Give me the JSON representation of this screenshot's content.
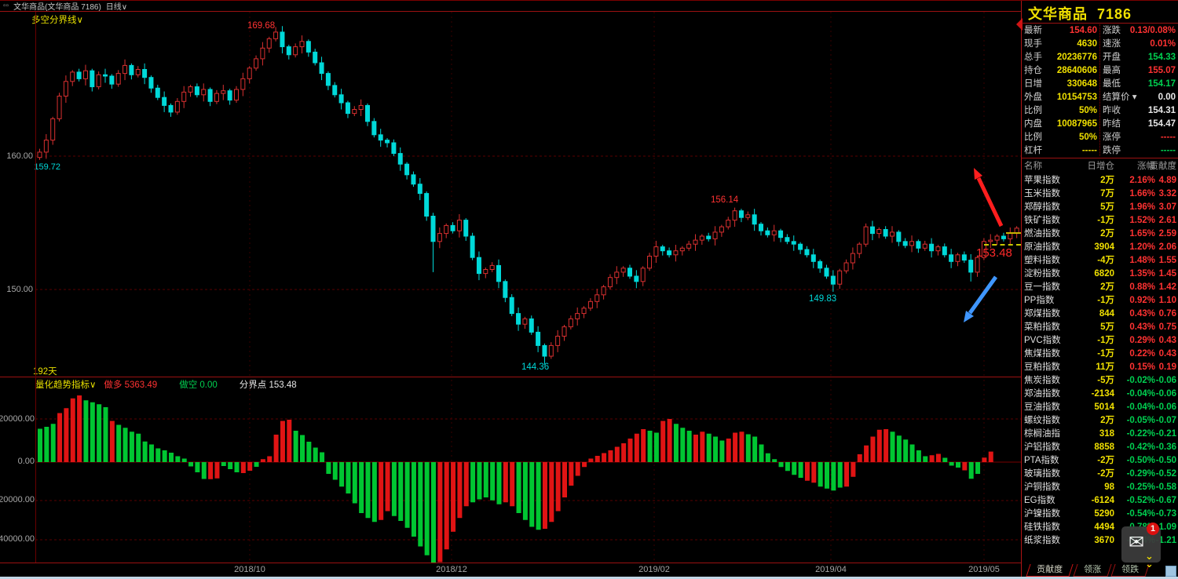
{
  "header": {
    "window_icon": "▫▫",
    "title": "文华商品(文华商品 7186)",
    "period": "日线",
    "dropdown": "∨"
  },
  "chart": {
    "overlay_name": "多空分界线",
    "dropdown": "∨",
    "days_label": "192天",
    "price_axis_labels": [
      "160.00",
      "150.00"
    ],
    "first_low_label": "159.72",
    "peak_label": "169.68",
    "high2_label": "156.14",
    "low_label": "144.36",
    "low2_label": "149.83",
    "divider_price": "153.48"
  },
  "indicator": {
    "name": "量化趋势指标",
    "dropdown": "∨",
    "long_label": "做多",
    "long_value": "5363.49",
    "short_label": "做空",
    "short_value": "0.00",
    "pivot_label": "分界点",
    "pivot_value": "153.48",
    "y_labels": [
      "20000.00",
      "0.00",
      "-20000.00",
      "-40000.00"
    ],
    "x_labels": [
      "2018/10",
      "2018/12",
      "2019/02",
      "2019/04",
      "2019/05"
    ]
  },
  "quote": {
    "name": "文华商品",
    "code": "7186",
    "rows": [
      {
        "l": "最新",
        "v": "154.60",
        "c": "r",
        "l2": "涨跌",
        "v2": "0.13/0.08%",
        "c2": "r"
      },
      {
        "l": "现手",
        "v": "4630",
        "c": "y",
        "l2": "速涨",
        "v2": "0.01%",
        "c2": "r"
      },
      {
        "l": "总手",
        "v": "20236776",
        "c": "y",
        "l2": "开盘",
        "v2": "154.33",
        "c2": "g"
      },
      {
        "l": "持仓",
        "v": "28640606",
        "c": "y",
        "l2": "最高",
        "v2": "155.07",
        "c2": "r"
      },
      {
        "l": "日增",
        "v": "330648",
        "c": "y",
        "l2": "最低",
        "v2": "154.17",
        "c2": "g"
      },
      {
        "l": "外盘",
        "v": "10154753",
        "c": "y",
        "l2": "结算价",
        "v2": "0.00",
        "c2": "w",
        "dd": true
      },
      {
        "l": "比例",
        "v": "50%",
        "c": "y",
        "l2": "昨收",
        "v2": "154.31",
        "c2": "w"
      },
      {
        "l": "内盘",
        "v": "10087965",
        "c": "y",
        "l2": "昨结",
        "v2": "154.47",
        "c2": "w"
      },
      {
        "l": "比例",
        "v": "50%",
        "c": "y",
        "l2": "涨停",
        "v2": "-----",
        "c2": "r"
      },
      {
        "l": "杠杆",
        "v": "-----",
        "c": "y",
        "l2": "跌停",
        "v2": "-----",
        "c2": "g"
      }
    ]
  },
  "table": {
    "headers": [
      "名称",
      "日增仓",
      "涨幅",
      "贡献度"
    ],
    "rows": [
      [
        "苹果指数",
        "2万",
        "2.16%",
        "4.89"
      ],
      [
        "玉米指数",
        "7万",
        "1.66%",
        "3.32"
      ],
      [
        "郑醇指数",
        "5万",
        "1.96%",
        "3.07"
      ],
      [
        "铁矿指数",
        "-1万",
        "1.52%",
        "2.61"
      ],
      [
        "燃油指数",
        "2万",
        "1.65%",
        "2.59"
      ],
      [
        "原油指数",
        "3904",
        "1.20%",
        "2.06"
      ],
      [
        "塑料指数",
        "-4万",
        "1.48%",
        "1.55"
      ],
      [
        "淀粉指数",
        "6820",
        "1.35%",
        "1.45"
      ],
      [
        "豆一指数",
        "2万",
        "0.88%",
        "1.42"
      ],
      [
        "PP指数",
        "-1万",
        "0.92%",
        "1.10"
      ],
      [
        "郑煤指数",
        "844",
        "0.43%",
        "0.76"
      ],
      [
        "菜粕指数",
        "5万",
        "0.43%",
        "0.75"
      ],
      [
        "PVC指数",
        "-1万",
        "0.29%",
        "0.43"
      ],
      [
        "焦煤指数",
        "-1万",
        "0.22%",
        "0.43"
      ],
      [
        "豆粕指数",
        "11万",
        "0.15%",
        "0.19"
      ],
      [
        "焦炭指数",
        "-5万",
        "-0.02%",
        "-0.06"
      ],
      [
        "郑油指数",
        "-2134",
        "-0.04%",
        "-0.06"
      ],
      [
        "豆油指数",
        "5014",
        "-0.04%",
        "-0.06"
      ],
      [
        "螺纹指数",
        "2万",
        "-0.05%",
        "-0.07"
      ],
      [
        "棕榈油指",
        "318",
        "-0.22%",
        "-0.21"
      ],
      [
        "沪铝指数",
        "8858",
        "-0.42%",
        "-0.36"
      ],
      [
        "PTA指数",
        "-2万",
        "-0.50%",
        "-0.50"
      ],
      [
        "玻璃指数",
        "-2万",
        "-0.29%",
        "-0.52"
      ],
      [
        "沪铜指数",
        "98",
        "-0.25%",
        "-0.58"
      ],
      [
        "EG指数",
        "-6124",
        "-0.52%",
        "-0.67"
      ],
      [
        "沪镍指数",
        "5290",
        "-0.54%",
        "-0.73"
      ],
      [
        "硅铁指数",
        "4494",
        "-0.78%",
        "-1.09"
      ],
      [
        "纸浆指数",
        "3670",
        "-0.84%",
        "-1.21"
      ]
    ]
  },
  "tabs": [
    "贡献度",
    "领涨",
    "领跌"
  ],
  "mail": {
    "badge": "1"
  },
  "colors": {
    "up_candle": "#d93030",
    "down_candle": "#00d9d9",
    "hist_red": "#e01414",
    "hist_green": "#00c632",
    "pos_red": "#ff3232",
    "neg_green": "#00d050",
    "value_yellow": "#f0e000",
    "accent_yellow": "#e8d800",
    "white": "#e8e8e8",
    "grid_red": "#5a0000",
    "border_red": "#9b1111"
  },
  "chart_data": {
    "type": "candlestick+histogram",
    "price_panel": {
      "y_axis": [
        160.0,
        150.0
      ],
      "labeled_points": {
        "peak_high": 169.68,
        "first_low": 159.72,
        "swing_high": 156.14,
        "major_low": 144.36,
        "minor_low": 149.83,
        "pivot_line": 153.48,
        "last_close": 154.6
      },
      "open_first": 159.9,
      "closes": [
        160.3,
        161.2,
        162.8,
        164.5,
        165.6,
        166.3,
        165.8,
        166.4,
        165.2,
        166.1,
        166.0,
        165.4,
        166.2,
        166.8,
        166.1,
        166.5,
        165.9,
        165.1,
        164.4,
        163.8,
        163.3,
        164.1,
        164.8,
        165.2,
        164.6,
        165.0,
        164.1,
        164.7,
        164.9,
        164.2,
        165.0,
        165.8,
        166.6,
        167.3,
        168.1,
        168.8,
        169.3,
        168.2,
        167.6,
        168.2,
        168.6,
        167.8,
        167.0,
        166.2,
        165.3,
        164.6,
        164.0,
        163.2,
        163.5,
        163.8,
        162.6,
        161.6,
        161.2,
        161.0,
        160.2,
        159.4,
        158.6,
        157.9,
        157.2,
        155.5,
        153.6,
        154.2,
        154.8,
        154.4,
        155.2,
        154.0,
        152.4,
        151.2,
        151.5,
        151.8,
        150.6,
        149.4,
        148.2,
        147.4,
        147.8,
        146.8,
        145.8,
        145.0,
        145.8,
        146.5,
        147.2,
        147.8,
        148.2,
        148.6,
        149.1,
        149.6,
        150.2,
        150.9,
        151.3,
        151.6,
        151.0,
        150.6,
        151.6,
        152.5,
        153.2,
        152.9,
        152.6,
        152.9,
        153.1,
        153.4,
        153.7,
        154.0,
        153.8,
        154.3,
        154.7,
        155.2,
        155.9,
        155.4,
        155.6,
        154.9,
        154.4,
        154.1,
        154.4,
        153.9,
        153.6,
        153.4,
        153.0,
        152.6,
        152.1,
        151.6,
        151.0,
        150.4,
        151.4,
        152.0,
        152.7,
        153.4,
        154.7,
        154.2,
        154.5,
        154.0,
        154.3,
        153.6,
        153.3,
        153.6,
        153.1,
        153.4,
        152.9,
        153.2,
        152.6,
        152.1,
        152.6,
        152.2,
        151.3,
        152.4,
        153.6,
        153.7,
        154.0,
        153.8,
        154.2,
        154.6
      ],
      "specials": {
        "0": {
          "low": 159.72
        },
        "36": {
          "high": 169.68
        },
        "60": {
          "low": 151.3
        },
        "77": {
          "low": 144.36
        },
        "106": {
          "high": 156.14
        },
        "121": {
          "low": 149.83
        },
        "142": {
          "low": 150.6
        },
        "149": {
          "high": 154.75
        }
      }
    },
    "histogram_panel": {
      "y_axis": [
        20000,
        0,
        -20000,
        -40000
      ],
      "values": [
        17000,
        18000,
        19500,
        25000,
        27500,
        32500,
        34000,
        31500,
        30500,
        29500,
        28000,
        21000,
        19000,
        17500,
        15500,
        14500,
        10500,
        9000,
        7000,
        6000,
        4800,
        3000,
        1800,
        -2200,
        -5200,
        -8600,
        -8700,
        -8300,
        -2000,
        -3600,
        -5200,
        -5600,
        -4400,
        -2400,
        1500,
        3000,
        14000,
        21000,
        21600,
        16000,
        13800,
        10400,
        7400,
        5000,
        -6000,
        -9000,
        -12500,
        -16000,
        -21000,
        -26000,
        -28500,
        -30500,
        -29500,
        -25000,
        -27500,
        -30000,
        -33500,
        -38000,
        -43000,
        -47500,
        -52000,
        -51000,
        -44500,
        -35500,
        -28500,
        -22500,
        -20500,
        -19000,
        -18000,
        -19500,
        -21500,
        -20500,
        -22500,
        -26000,
        -29500,
        -33000,
        -34500,
        -34000,
        -30500,
        -25000,
        -18000,
        -12000,
        -7000,
        -2500,
        1800,
        3200,
        4600,
        6000,
        7800,
        9600,
        12000,
        14500,
        16800,
        16000,
        15000,
        21000,
        22000,
        19500,
        17500,
        16000,
        14000,
        15500,
        14500,
        13000,
        11000,
        12000,
        15000,
        15500,
        14200,
        13000,
        9000,
        4500,
        1500,
        -2500,
        -4500,
        -6500,
        -8000,
        -9500,
        -10500,
        -12500,
        -13500,
        -14500,
        -13000,
        -12500,
        -7500,
        4000,
        8500,
        13000,
        16500,
        16800,
        15500,
        13500,
        11500,
        9000,
        6000,
        3000,
        3500,
        4200,
        2200,
        -1800,
        -2800,
        -4200,
        -8500,
        -6000,
        2300,
        5363
      ],
      "bar_colors": "gggrrrrggggrggggggggggggggrrgggrrgrrrrrgggggggggggggrrgggggggrrrrrgggggrrggggrrrrrrrrrrrrrrrrggrrgggrrgggrrrgggggggggrrggggrrrrrrrggggggrrgggrggrr"
    }
  }
}
